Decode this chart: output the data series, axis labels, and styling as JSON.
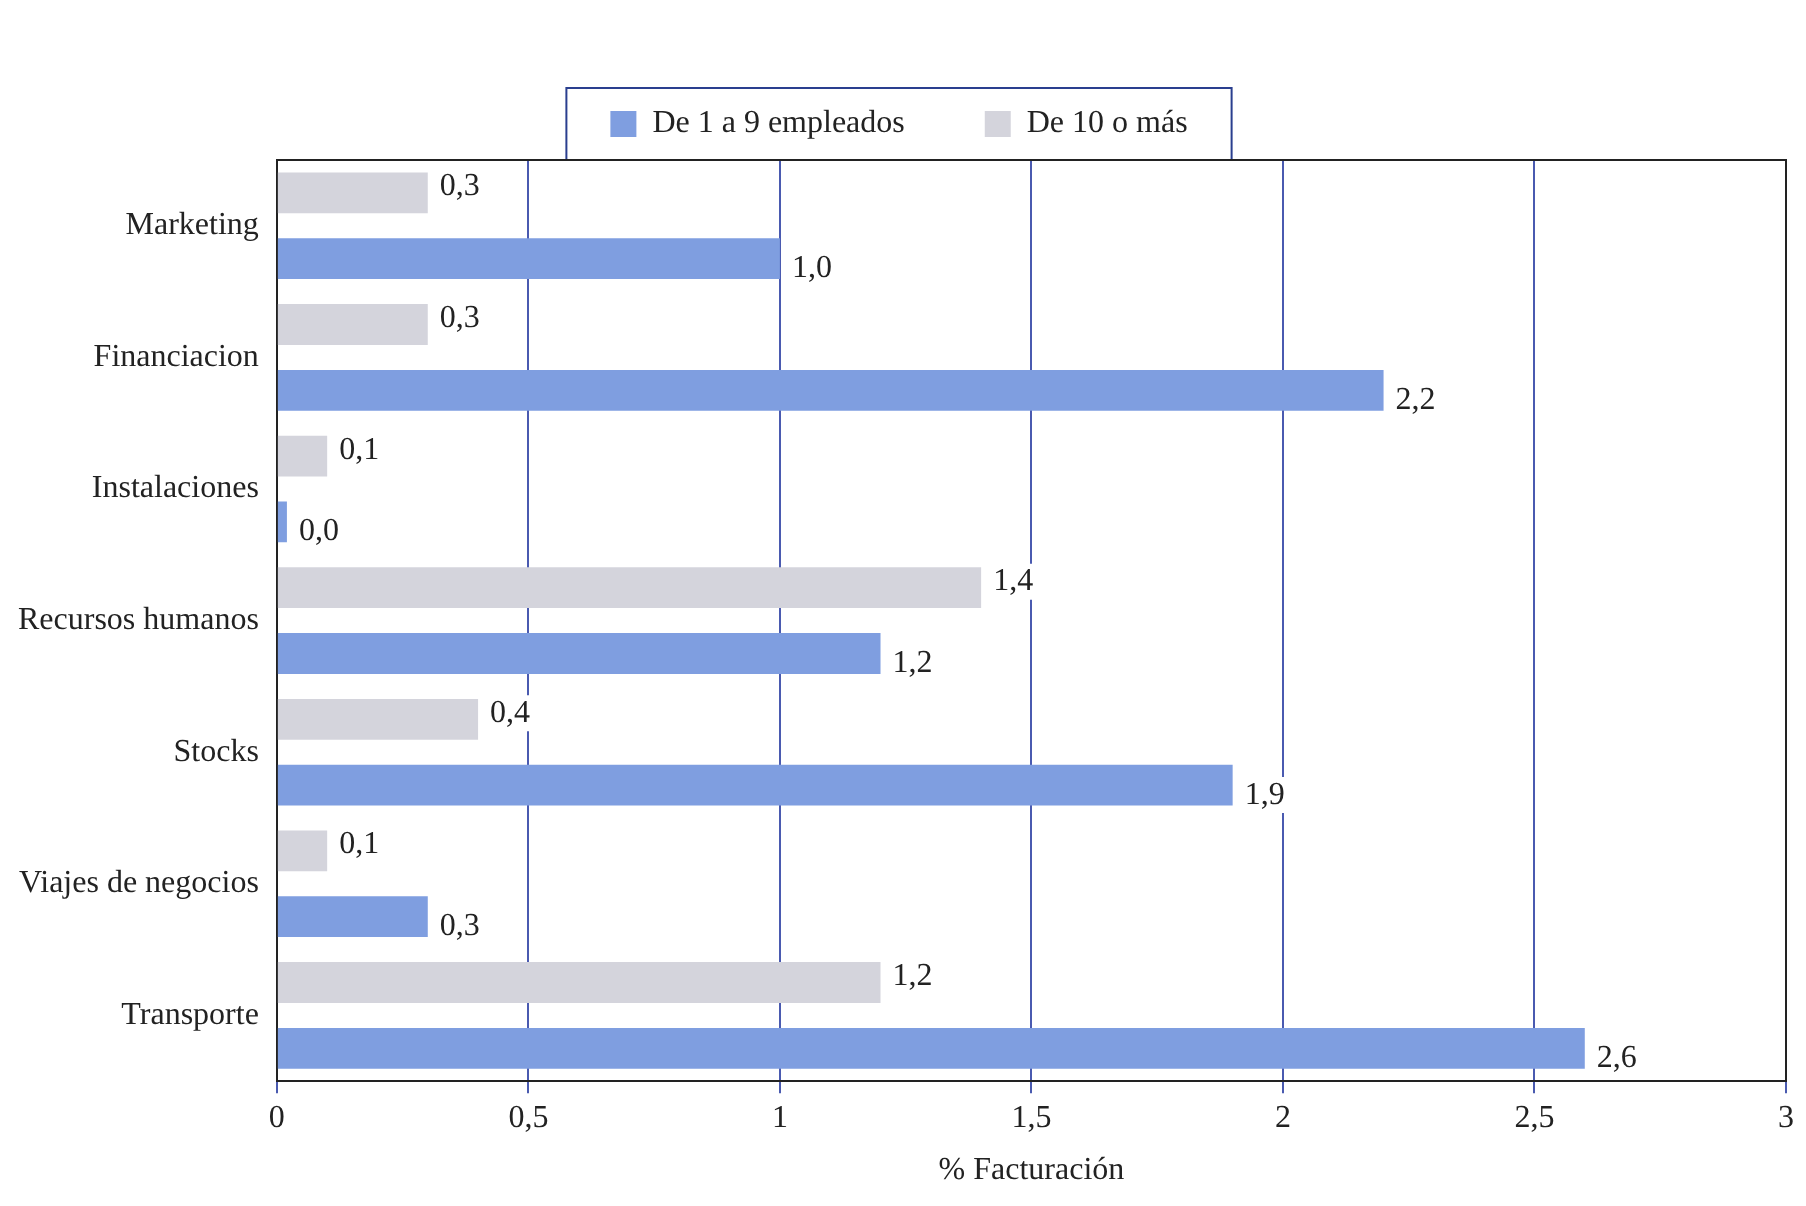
{
  "chart_data": {
    "type": "bar",
    "orientation": "horizontal",
    "xlabel": "% Facturación",
    "categories": [
      "Marketing",
      "Financiacion",
      "Instalaciones",
      "Recursos humanos",
      "Stocks",
      "Viajes de negocios",
      "Transporte"
    ],
    "series": [
      {
        "name": "De 10 o más",
        "color": "#d4d4dc",
        "values": [
          0.3,
          0.3,
          0.1,
          1.4,
          0.4,
          0.1,
          1.2
        ],
        "value_labels": [
          "0,3",
          "0,3",
          "0,1",
          "1,4",
          "0,4",
          "0,1",
          "1,2"
        ]
      },
      {
        "name": "De 1 a 9 empleados",
        "color": "#7f9ee0",
        "values": [
          1.0,
          2.2,
          0.02,
          1.2,
          1.9,
          0.3,
          2.6
        ],
        "value_labels": [
          "1,0",
          "2,2",
          "0,0",
          "1,2",
          "1,9",
          "0,3",
          "2,6"
        ]
      }
    ],
    "xlim": [
      0,
      3
    ],
    "xticks": [
      0,
      {
        "value": 0.5,
        "label": "0,5"
      },
      1,
      {
        "value": 1.5,
        "label": "1,5"
      },
      2,
      {
        "value": 2.5,
        "label": "2,5"
      },
      3
    ],
    "grid": "x",
    "legend": "top"
  }
}
